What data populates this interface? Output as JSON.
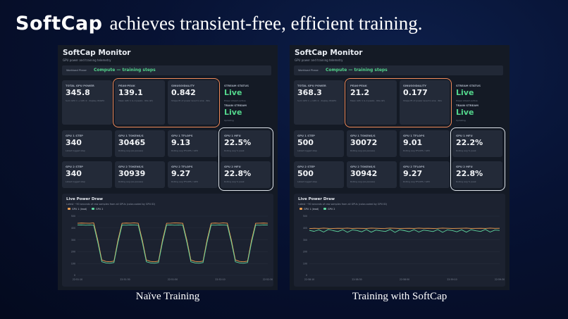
{
  "slide": {
    "title_brand": "SoftCap",
    "title_rest": "achieves transient-free, efficient training.",
    "panels": [
      {
        "caption": "Naïve Training",
        "app_title": "SoftCap Monitor",
        "app_subtitle": "GPU power and training telemetry",
        "phase_label": "Workload Phase",
        "phase_value": "Compute — training steps",
        "metrics": [
          {
            "label": "TOTAL GPU POWER",
            "value": "345.8",
            "note": "Sum GPU 1 + GPU 2 · display W/GPU"
          },
          {
            "label": "PEAK-PEAK",
            "value": "139.1",
            "note": "Mean GPU 1 & 2 peaks · 60s (W)"
          },
          {
            "label": "SINUSOIDALITY",
            "value": "0.842",
            "note": "Shape fit of power level to sine · 60s"
          },
          {
            "label": "STREAM STATUS",
            "value": "Live",
            "note": "Power stream active",
            "label2": "TRAIN STREAM",
            "value2": "Live",
            "note2": "Updating"
          }
        ],
        "gpus": [
          [
            {
              "label": "GPU 1 STEP",
              "value": "340",
              "note": "Latest logged step"
            },
            {
              "label": "GPU 1 TOKENS/S",
              "value": "30465",
              "note": "Rolling avg (ex-pauses)"
            },
            {
              "label": "GPU 1 TFLOPS",
              "value": "9.13",
              "note": "Rolling avg TFLOPS / GPU"
            },
            {
              "label": "GPU 1 MFU",
              "value": "22.5%",
              "note": "Rolling avg % peak"
            }
          ],
          [
            {
              "label": "GPU 2 STEP",
              "value": "340",
              "note": "Latest logged step"
            },
            {
              "label": "GPU 2 TOKENS/S",
              "value": "30939",
              "note": "Rolling avg (ex-pauses)"
            },
            {
              "label": "GPU 2 TFLOPS",
              "value": "9.27",
              "note": "Rolling avg TFLOPS / GPU"
            },
            {
              "label": "GPU 2 MFU",
              "value": "22.8%",
              "note": "Rolling avg % peak"
            }
          ]
        ],
        "chart": {
          "type": "line",
          "title": "Live Power Draw",
          "subtitle": "Latest ~90 seconds of raw samples from all GPUs (color-coded by GPU ID)",
          "ylim": [
            0,
            500
          ],
          "yticks": [
            0,
            100,
            200,
            300,
            400,
            500
          ],
          "xtick_labels": [
            "22:51:10",
            "22:51:30",
            "22:51:50",
            "22:52:10",
            "22:52:30"
          ],
          "series": [
            {
              "name": "GPU 1 (lead)",
              "color": "#f0a050",
              "values": [
                440,
                442,
                441,
                440,
                443,
                300,
                130,
                118,
                115,
                120,
                300,
                440,
                442,
                441,
                443,
                440,
                300,
                130,
                118,
                115,
                120,
                300,
                440,
                441,
                443,
                442,
                440,
                300,
                130,
                118,
                115,
                120,
                300,
                440,
                442,
                440,
                443,
                441,
                300,
                130,
                118,
                115,
                120,
                300,
                440,
                441,
                442,
                440
              ]
            },
            {
              "name": "GPU 2",
              "color": "#5fd6a0",
              "values": [
                425,
                426,
                424,
                425,
                424,
                280,
                115,
                105,
                102,
                108,
                280,
                425,
                424,
                426,
                425,
                424,
                280,
                115,
                105,
                102,
                108,
                280,
                425,
                426,
                424,
                425,
                424,
                280,
                115,
                105,
                102,
                108,
                280,
                425,
                424,
                426,
                425,
                424,
                280,
                115,
                105,
                102,
                108,
                280,
                425,
                424,
                426,
                425
              ]
            }
          ]
        }
      },
      {
        "caption": "Training with SoftCap",
        "app_title": "SoftCap Monitor",
        "app_subtitle": "GPU power and training telemetry",
        "phase_label": "Workload Phase",
        "phase_value": "Compute — training steps",
        "metrics": [
          {
            "label": "TOTAL GPU POWER",
            "value": "368.3",
            "note": "Sum GPU 1 + GPU 2 · display W/GPU"
          },
          {
            "label": "PEAK-PEAK",
            "value": "21.2",
            "note": "Mean GPU 1 & 2 peaks · 60s (W)"
          },
          {
            "label": "SINUSOIDALITY",
            "value": "0.177",
            "note": "Shape fit of power level to sine · 60s"
          },
          {
            "label": "STREAM STATUS",
            "value": "Live",
            "note": "Power stream active",
            "label2": "TRAIN STREAM",
            "value2": "Live",
            "note2": "Updating"
          }
        ],
        "gpus": [
          [
            {
              "label": "GPU 1 STEP",
              "value": "500",
              "note": "Latest logged step"
            },
            {
              "label": "GPU 1 TOKENS/S",
              "value": "30072",
              "note": "Rolling avg (ex-pauses)"
            },
            {
              "label": "GPU 1 TFLOPS",
              "value": "9.01",
              "note": "Rolling avg TFLOPS / GPU"
            },
            {
              "label": "GPU 1 MFU",
              "value": "22.2%",
              "note": "Rolling avg % peak"
            }
          ],
          [
            {
              "label": "GPU 2 STEP",
              "value": "500",
              "note": "Latest logged step"
            },
            {
              "label": "GPU 2 TOKENS/S",
              "value": "30942",
              "note": "Rolling avg (ex-pauses)"
            },
            {
              "label": "GPU 2 TFLOPS",
              "value": "9.27",
              "note": "Rolling avg TFLOPS / GPU"
            },
            {
              "label": "GPU 2 MFU",
              "value": "22.8%",
              "note": "Rolling avg % peak"
            }
          ]
        ],
        "chart": {
          "type": "line",
          "title": "Live Power Draw",
          "subtitle": "Latest ~90 seconds of raw samples from all GPUs (color-coded by GPU ID)",
          "ylim": [
            0,
            500
          ],
          "yticks": [
            0,
            100,
            200,
            300,
            400,
            500
          ],
          "xtick_labels": [
            "22:58:10",
            "22:58:30",
            "22:58:50",
            "22:59:10",
            "22:59:30"
          ],
          "series": [
            {
              "name": "GPU 1 (lead)",
              "color": "#f0a050",
              "values": [
                395,
                398,
                396,
                399,
                397,
                396,
                398,
                397,
                399,
                396,
                398,
                397,
                396,
                399,
                398,
                396,
                397,
                399,
                398,
                396,
                397,
                398,
                396,
                399,
                397,
                398,
                396,
                397,
                399,
                398,
                396,
                397,
                398,
                399,
                396,
                397,
                398,
                396,
                399,
                397,
                398
              ]
            },
            {
              "name": "GPU 2",
              "color": "#5fd6a0",
              "values": [
                380,
                372,
                385,
                366,
                388,
                378,
                370,
                386,
                364,
                384,
                379,
                368,
                387,
                365,
                383,
                376,
                371,
                388,
                363,
                385,
                378,
                369,
                386,
                366,
                382,
                377,
                370,
                387,
                364,
                384,
                379,
                368,
                385,
                365,
                386,
                377,
                371,
                388,
                366,
                383,
                380
              ]
            }
          ]
        }
      }
    ]
  }
}
